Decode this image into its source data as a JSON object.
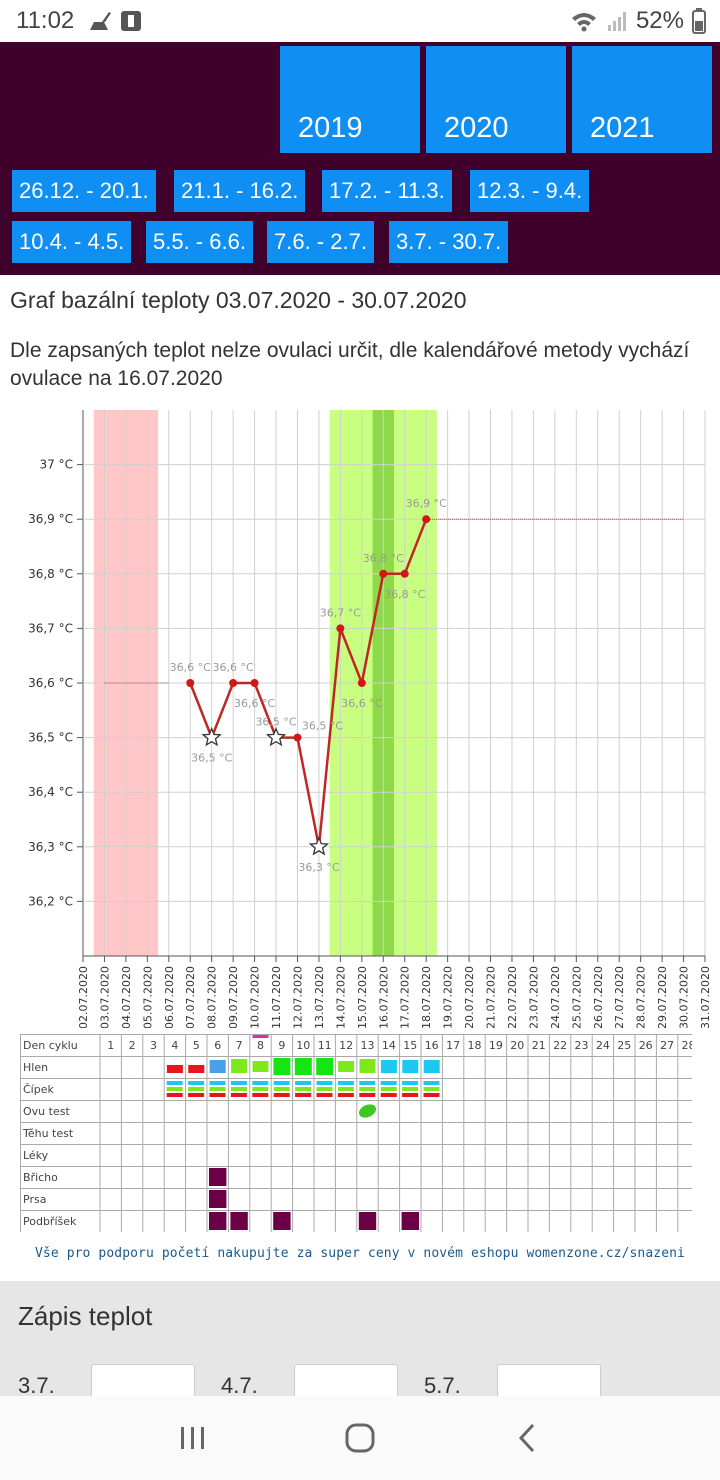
{
  "status_bar": {
    "time": "11:02",
    "battery": "52%"
  },
  "years": [
    "2019",
    "2020",
    "2021"
  ],
  "periods": [
    "26.12. - 20.1.",
    "21.1. - 16.2.",
    "17.2. - 11.3.",
    "12.3. - 9.4.",
    "10.4. - 4.5.",
    "5.5. - 6.6.",
    "7.6. - 2.7.",
    "3.7. - 30.7."
  ],
  "page_title": "Graf bazální teploty 03.07.2020 - 30.07.2020",
  "ovulation_note": "Dle zapsaných teplot nelze ovulaci určit, dle kalendářové metody vychází ovulace na 16.07.2020",
  "chart_data": {
    "type": "line",
    "title": "Graf bazální teploty 03.07.2020 - 30.07.2020",
    "x": [
      "02.07.2020",
      "03.07.2020",
      "04.07.2020",
      "05.07.2020",
      "06.07.2020",
      "07.07.2020",
      "08.07.2020",
      "09.07.2020",
      "10.07.2020",
      "11.07.2020",
      "12.07.2020",
      "13.07.2020",
      "14.07.2020",
      "15.07.2020",
      "16.07.2020",
      "17.07.2020",
      "18.07.2020",
      "19.07.2020",
      "20.07.2020",
      "21.07.2020",
      "22.07.2020",
      "23.07.2020",
      "24.07.2020",
      "25.07.2020",
      "26.07.2020",
      "27.07.2020",
      "28.07.2020",
      "29.07.2020",
      "30.07.2020",
      "31.07.2020"
    ],
    "y_ticks": [
      "36,2 °C",
      "36,3 °C",
      "36,4 °C",
      "36,5 °C",
      "36,6 °C",
      "36,7 °C",
      "36,8 °C",
      "36,9 °C",
      "37 °C"
    ],
    "ylim": [
      36.1,
      37.1
    ],
    "series": [
      {
        "points": [
          {
            "x": "07.07.2020",
            "y": 36.6,
            "label": "36,6 °C",
            "marker": "dot",
            "label_pos": "above"
          },
          {
            "x": "08.07.2020",
            "y": 36.5,
            "label": "36,5 °C",
            "marker": "star",
            "label_pos": "below"
          },
          {
            "x": "09.07.2020",
            "y": 36.6,
            "label": "36,6 °C",
            "marker": "dot",
            "label_pos": "above"
          },
          {
            "x": "10.07.2020",
            "y": 36.6,
            "label": "36,6 °C",
            "marker": "dot",
            "label_pos": "below"
          },
          {
            "x": "11.07.2020",
            "y": 36.5,
            "label": "36,5 °C",
            "marker": "star",
            "label_pos": "above"
          },
          {
            "x": "12.07.2020",
            "y": 36.5,
            "label": "36,5 °C",
            "marker": "dot",
            "label_pos": "aboveright"
          },
          {
            "x": "13.07.2020",
            "y": 36.3,
            "label": "36,3 °C",
            "marker": "star",
            "label_pos": "below"
          },
          {
            "x": "14.07.2020",
            "y": 36.7,
            "label": "36,7 °C",
            "marker": "dot",
            "label_pos": "above"
          },
          {
            "x": "15.07.2020",
            "y": 36.6,
            "label": "36,6 °C",
            "marker": "dot",
            "label_pos": "below"
          },
          {
            "x": "16.07.2020",
            "y": 36.8,
            "label": "36,8 °C",
            "marker": "dot",
            "label_pos": "above"
          },
          {
            "x": "17.07.2020",
            "y": 36.8,
            "label": "36,8 °C",
            "marker": "dot",
            "label_pos": "below"
          },
          {
            "x": "18.07.2020",
            "y": 36.9,
            "label": "36,9 °C",
            "marker": "dot",
            "label_pos": "above"
          }
        ]
      }
    ],
    "reference_lines": [
      {
        "from": "03.07.2020",
        "to": "06.07.2020",
        "y": 36.6
      },
      {
        "from": "18.07.2020",
        "to": "30.07.2020",
        "y": 36.9
      }
    ],
    "bands": [
      {
        "from": 1.0,
        "to": 4.0,
        "color": "#ffc7c7"
      },
      {
        "from": 12.0,
        "to": 17.0,
        "color": "#c8ff80"
      },
      {
        "from": 14.0,
        "to": 15.0,
        "color": "#8ed94a"
      }
    ],
    "grid": true
  },
  "cycle_table": {
    "row_labels": [
      "Den cyklu",
      "Hlen",
      "Čípek",
      "Ovu test",
      "Těhu test",
      "Léky",
      "Břicho",
      "Prsa",
      "Podbříšek"
    ],
    "days": [
      "1",
      "2",
      "3",
      "4",
      "5",
      "6",
      "7",
      "8",
      "9",
      "10",
      "11",
      "12",
      "13",
      "14",
      "15",
      "16",
      "17",
      "18",
      "19",
      "20",
      "21",
      "22",
      "23",
      "24",
      "25",
      "26",
      "27",
      "28"
    ],
    "highlight_day": 8,
    "hlen": [
      "",
      "",
      "",
      "red-flat",
      "red-flat",
      "blue",
      "green-mid",
      "green-small",
      "green-big",
      "green-big",
      "green-big",
      "green-small",
      "green-mid",
      "cyan",
      "cyan",
      "cyan",
      "",
      "",
      "",
      "",
      "",
      "",
      "",
      "",
      "",
      "",
      "",
      ""
    ],
    "cipek": [
      "",
      "",
      "",
      "multi",
      "multi",
      "multi",
      "multi",
      "multi",
      "multi",
      "multi",
      "multi",
      "multi",
      "multi",
      "multi",
      "multi",
      "multi",
      "",
      "",
      "",
      "",
      "",
      "",
      "",
      "",
      "",
      "",
      "",
      ""
    ],
    "ovu_test": [
      "",
      "",
      "",
      "",
      "",
      "",
      "",
      "",
      "",
      "",
      "",
      "",
      "positive",
      "",
      "",
      "",
      "",
      "",
      "",
      "",
      "",
      "",
      "",
      "",
      "",
      "",
      "",
      ""
    ],
    "bricho": [
      "",
      "",
      "",
      "",
      "",
      "yes",
      "",
      "",
      "",
      "",
      "",
      "",
      "",
      "",
      "",
      "",
      "",
      "",
      "",
      "",
      "",
      "",
      "",
      "",
      "",
      "",
      "",
      ""
    ],
    "prsa": [
      "",
      "",
      "",
      "",
      "",
      "yes",
      "",
      "",
      "",
      "",
      "",
      "",
      "",
      "",
      "",
      "",
      "",
      "",
      "",
      "",
      "",
      "",
      "",
      "",
      "",
      "",
      "",
      ""
    ],
    "podbrisek": [
      "",
      "",
      "",
      "",
      "",
      "yes",
      "yes",
      "",
      "yes",
      "",
      "",
      "",
      "yes",
      "",
      "yes",
      "",
      "",
      "",
      "",
      "",
      "",
      "",
      "",
      "",
      "",
      "",
      "",
      ""
    ],
    "colors": {
      "red": "#e8141e",
      "blue": "#4aa0e6",
      "green": "#7ee81a",
      "bright_green": "#14e614",
      "cyan": "#1ac8f0",
      "purple": "#6b0046"
    }
  },
  "promo": "Vše pro podporu početí nakupujte za super ceny v novém eshopu womenzone.cz/snazeni",
  "entry": {
    "title": "Zápis teplot",
    "dates": [
      "3.7.",
      "4.7.",
      "5.7."
    ]
  },
  "navbar": {
    "icons": [
      "recent-apps-icon",
      "home-icon",
      "back-icon"
    ]
  }
}
